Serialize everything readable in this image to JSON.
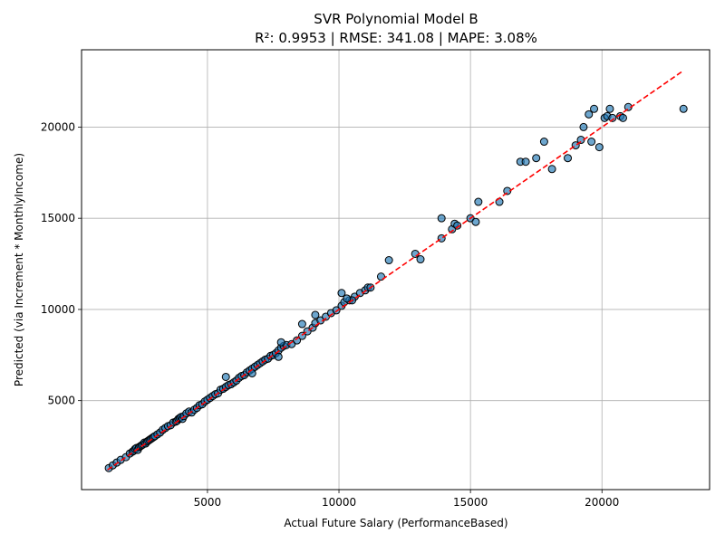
{
  "chart_data": {
    "type": "scatter",
    "title": "SVR Polynomial Model B",
    "subtitle": "R²: 0.9953 | RMSE: 341.08 | MAPE: 3.08%",
    "xlabel": "Actual Future Salary (PerformanceBased)",
    "ylabel": "Predicted (via Increment * MonthlyIncome)",
    "xlim": [
      213,
      24092
    ],
    "ylim": [
      120,
      24240
    ],
    "xticks": [
      5000,
      10000,
      15000,
      20000
    ],
    "yticks": [
      5000,
      10000,
      15000,
      20000
    ],
    "grid": true,
    "colors": {
      "point_fill": "#1f77b4",
      "point_edge": "#000000",
      "reference_line": "#ff0000"
    },
    "reference_line": {
      "x": [
        1200,
        23100
      ],
      "y": [
        1200,
        23100
      ]
    },
    "points": {
      "x": [
        1250,
        1400,
        1550,
        1700,
        1900,
        2050,
        2150,
        2200,
        2250,
        2300,
        2350,
        2400,
        2450,
        2500,
        2550,
        2600,
        2650,
        2700,
        2750,
        2800,
        2850,
        2900,
        2950,
        3000,
        3100,
        3200,
        3300,
        3400,
        3500,
        3600,
        3700,
        3800,
        3850,
        3900,
        3950,
        4000,
        4050,
        4100,
        4200,
        4300,
        4400,
        4500,
        4600,
        4700,
        4800,
        4900,
        5000,
        5100,
        5200,
        5300,
        5400,
        5500,
        5600,
        5700,
        5800,
        5900,
        6000,
        6100,
        6200,
        6300,
        6400,
        6500,
        6600,
        6700,
        6800,
        6900,
        7000,
        7100,
        7200,
        7300,
        7400,
        7500,
        7600,
        7700,
        7800,
        7900,
        8000,
        8200,
        8400,
        8600,
        8800,
        9000,
        9100,
        9300,
        9500,
        9700,
        9900,
        10100,
        10200,
        10400,
        10600,
        10800,
        11000,
        11100,
        11600,
        11900,
        12900,
        13100,
        13900,
        13900,
        14300,
        14400,
        14500,
        15000,
        15200,
        15300,
        16100,
        16400,
        16900,
        17100,
        17500,
        17800,
        18100,
        18700,
        19000,
        19200,
        19300,
        19500,
        19600,
        19700,
        19900,
        20100,
        20200,
        20300,
        20400,
        20700,
        20800,
        21000,
        23100,
        5700,
        6700,
        7800,
        9100,
        10100,
        10500,
        10300,
        7700,
        8600,
        11200
      ],
      "y": [
        1300,
        1450,
        1600,
        1750,
        1900,
        2100,
        2200,
        2250,
        2350,
        2400,
        2300,
        2450,
        2500,
        2550,
        2600,
        2700,
        2650,
        2750,
        2800,
        2850,
        2900,
        2950,
        3000,
        3050,
        3150,
        3250,
        3400,
        3500,
        3600,
        3650,
        3800,
        3850,
        3900,
        4000,
        4050,
        4100,
        4000,
        4150,
        4300,
        4400,
        4350,
        4500,
        4600,
        4750,
        4800,
        4950,
        5050,
        5150,
        5250,
        5350,
        5400,
        5600,
        5650,
        5750,
        5850,
        5900,
        6000,
        6100,
        6250,
        6350,
        6400,
        6550,
        6650,
        6750,
        6850,
        6950,
        7050,
        7150,
        7250,
        7300,
        7450,
        7500,
        7600,
        7750,
        7900,
        8000,
        8050,
        8100,
        8300,
        8550,
        8800,
        9000,
        9250,
        9400,
        9600,
        9800,
        9950,
        10200,
        10400,
        10500,
        10700,
        10900,
        11050,
        11200,
        11800,
        12700,
        13050,
        12750,
        13900,
        15000,
        14400,
        14700,
        14600,
        15000,
        14800,
        15900,
        15900,
        16500,
        18100,
        18100,
        18300,
        19200,
        17700,
        18300,
        19000,
        19300,
        20000,
        20700,
        19200,
        21000,
        18900,
        20500,
        20600,
        21000,
        20500,
        20600,
        20500,
        21100,
        21000,
        6300,
        6500,
        8200,
        9700,
        10900,
        10500,
        10600,
        7400,
        9200,
        11200
      ]
    }
  }
}
